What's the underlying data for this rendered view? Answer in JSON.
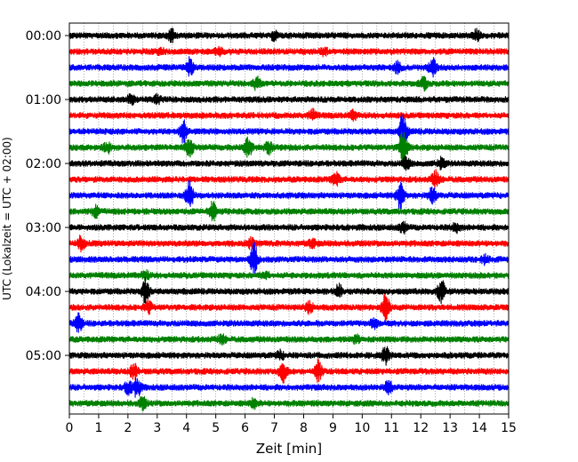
{
  "chart_data": {
    "type": "line",
    "title": "",
    "xlabel": "Zeit  [min]",
    "ylabel": "UTC (Lokalzeit = UTC + 02:00)",
    "xlim": [
      0,
      15
    ],
    "x_ticks": [
      "0",
      "1",
      "2",
      "3",
      "4",
      "5",
      "6",
      "7",
      "8",
      "9",
      "10",
      "11",
      "12",
      "13",
      "14",
      "15"
    ],
    "y_ticks": [
      "00:00",
      "01:00",
      "02:00",
      "03:00",
      "04:00",
      "05:00"
    ],
    "grid": "vertical dotted every 0.5 min",
    "trace_colors": [
      "#000000",
      "#ff0000",
      "#0000ff",
      "#008000"
    ],
    "traces": [
      {
        "start": "00:00",
        "events": [
          {
            "t": 3.5,
            "amp": 0.6
          },
          {
            "t": 7.0,
            "amp": 0.4
          },
          {
            "t": 13.9,
            "amp": 0.5
          }
        ]
      },
      {
        "start": "00:15",
        "events": [
          {
            "t": 3.1,
            "amp": 0.3
          },
          {
            "t": 5.1,
            "amp": 0.4
          },
          {
            "t": 8.7,
            "amp": 0.3
          }
        ]
      },
      {
        "start": "00:30",
        "events": [
          {
            "t": 4.1,
            "amp": 0.9
          },
          {
            "t": 11.2,
            "amp": 0.5
          },
          {
            "t": 12.4,
            "amp": 0.9
          }
        ]
      },
      {
        "start": "00:45",
        "events": [
          {
            "t": 6.4,
            "amp": 0.6
          },
          {
            "t": 12.1,
            "amp": 0.6
          }
        ]
      },
      {
        "start": "01:00",
        "events": [
          {
            "t": 2.1,
            "amp": 0.4
          },
          {
            "t": 3.0,
            "amp": 0.4
          }
        ]
      },
      {
        "start": "01:15",
        "events": [
          {
            "t": 8.3,
            "amp": 0.5
          },
          {
            "t": 9.7,
            "amp": 0.4
          }
        ]
      },
      {
        "start": "01:30",
        "events": [
          {
            "t": 3.9,
            "amp": 1.2
          },
          {
            "t": 11.4,
            "amp": 2.0
          }
        ]
      },
      {
        "start": "01:45",
        "events": [
          {
            "t": 1.3,
            "amp": 0.5
          },
          {
            "t": 4.1,
            "amp": 0.9
          },
          {
            "t": 6.1,
            "amp": 1.0
          },
          {
            "t": 6.8,
            "amp": 0.6
          },
          {
            "t": 11.4,
            "amp": 2.2
          }
        ]
      },
      {
        "start": "02:00",
        "events": [
          {
            "t": 11.5,
            "amp": 0.6
          },
          {
            "t": 12.7,
            "amp": 0.5
          }
        ]
      },
      {
        "start": "02:15",
        "events": [
          {
            "t": 9.1,
            "amp": 0.8
          },
          {
            "t": 12.5,
            "amp": 0.8
          }
        ]
      },
      {
        "start": "02:30",
        "events": [
          {
            "t": 4.1,
            "amp": 1.4
          },
          {
            "t": 11.3,
            "amp": 1.4
          },
          {
            "t": 12.4,
            "amp": 0.8
          }
        ]
      },
      {
        "start": "02:45",
        "events": [
          {
            "t": 0.9,
            "amp": 0.5
          },
          {
            "t": 4.9,
            "amp": 1.0
          }
        ]
      },
      {
        "start": "03:00",
        "events": [
          {
            "t": 11.4,
            "amp": 0.5
          },
          {
            "t": 13.2,
            "amp": 0.4
          }
        ]
      },
      {
        "start": "03:15",
        "events": [
          {
            "t": 0.4,
            "amp": 0.7
          },
          {
            "t": 6.2,
            "amp": 0.5
          },
          {
            "t": 8.3,
            "amp": 0.4
          }
        ]
      },
      {
        "start": "03:30",
        "events": [
          {
            "t": 6.3,
            "amp": 1.6
          },
          {
            "t": 14.2,
            "amp": 0.4
          }
        ]
      },
      {
        "start": "03:45",
        "events": [
          {
            "t": 2.6,
            "amp": 0.4
          },
          {
            "t": 6.7,
            "amp": 0.3
          }
        ]
      },
      {
        "start": "04:00",
        "events": [
          {
            "t": 2.6,
            "amp": 1.2
          },
          {
            "t": 9.2,
            "amp": 0.6
          },
          {
            "t": 12.7,
            "amp": 1.2
          }
        ]
      },
      {
        "start": "04:15",
        "events": [
          {
            "t": 2.7,
            "amp": 0.6
          },
          {
            "t": 10.8,
            "amp": 1.3
          },
          {
            "t": 8.2,
            "amp": 0.5
          }
        ]
      },
      {
        "start": "04:30",
        "events": [
          {
            "t": 0.3,
            "amp": 1.0
          },
          {
            "t": 10.4,
            "amp": 0.4
          }
        ]
      },
      {
        "start": "04:45",
        "events": [
          {
            "t": 5.2,
            "amp": 0.4
          },
          {
            "t": 9.8,
            "amp": 0.4
          }
        ]
      },
      {
        "start": "05:00",
        "events": [
          {
            "t": 7.2,
            "amp": 0.4
          },
          {
            "t": 10.8,
            "amp": 0.8
          }
        ]
      },
      {
        "start": "05:15",
        "events": [
          {
            "t": 2.2,
            "amp": 0.8
          },
          {
            "t": 7.3,
            "amp": 1.0
          },
          {
            "t": 8.5,
            "amp": 1.0
          }
        ]
      },
      {
        "start": "05:30",
        "events": [
          {
            "t": 2.0,
            "amp": 0.6
          },
          {
            "t": 2.3,
            "amp": 1.0
          },
          {
            "t": 10.9,
            "amp": 0.7
          }
        ]
      },
      {
        "start": "05:45",
        "events": [
          {
            "t": 2.5,
            "amp": 0.6
          },
          {
            "t": 6.3,
            "amp": 0.4
          }
        ]
      }
    ]
  }
}
